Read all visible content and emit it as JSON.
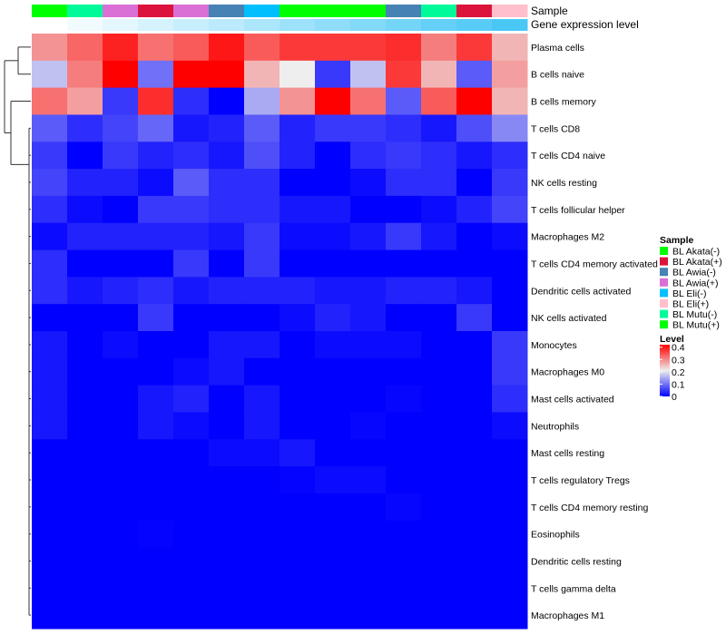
{
  "chart_data": {
    "type": "heatmap",
    "title": "",
    "annotation_labels": [
      "Sample",
      "Gene expression level"
    ],
    "columns": [
      {
        "sample": "BL Mutu(+)",
        "expression_rank": 0.0
      },
      {
        "sample": "BL Mutu(-)",
        "expression_rank": 0.08
      },
      {
        "sample": "BL Awia(+)",
        "expression_rank": 0.15
      },
      {
        "sample": "BL Akata(+)",
        "expression_rank": 0.23
      },
      {
        "sample": "BL Awia(+)",
        "expression_rank": 0.31
      },
      {
        "sample": "BL Awia(-)",
        "expression_rank": 0.38
      },
      {
        "sample": "BL Eli(-)",
        "expression_rank": 0.46
      },
      {
        "sample": "BL Akata(-)",
        "expression_rank": 0.54
      },
      {
        "sample": "BL Mutu(+)",
        "expression_rank": 0.62
      },
      {
        "sample": "BL Akata(-)",
        "expression_rank": 0.69
      },
      {
        "sample": "BL Awia(-)",
        "expression_rank": 0.77
      },
      {
        "sample": "BL Mutu(-)",
        "expression_rank": 0.85
      },
      {
        "sample": "BL Akata(+)",
        "expression_rank": 0.92
      },
      {
        "sample": "BL Eli(+)",
        "expression_rank": 1.0
      }
    ],
    "rows": [
      "Plasma cells",
      "B cells naive",
      "B cells memory",
      "T cells CD8",
      "T cells CD4 naive",
      "NK cells resting",
      "T cells follicular helper",
      "Macrophages M2",
      "T cells CD4 memory activated",
      "Dendritic cells activated",
      "NK cells activated",
      "Monocytes",
      "Macrophages M0",
      "Mast cells activated",
      "Neutrophils",
      "Mast cells resting",
      "T cells regulatory  Tregs",
      "T cells CD4 memory resting",
      "Eosinophils",
      "Dendritic cells resting",
      "T cells gamma delta",
      "Macrophages M1"
    ],
    "values": [
      [
        0.29,
        0.33,
        0.39,
        0.32,
        0.34,
        0.4,
        0.34,
        0.37,
        0.37,
        0.37,
        0.38,
        0.31,
        0.37,
        0.26
      ],
      [
        0.17,
        0.31,
        0.42,
        0.1,
        0.42,
        0.42,
        0.26,
        0.21,
        0.05,
        0.17,
        0.37,
        0.26,
        0.08,
        0.28
      ],
      [
        0.32,
        0.28,
        0.05,
        0.38,
        0.04,
        0.0,
        0.15,
        0.29,
        0.42,
        0.32,
        0.08,
        0.34,
        0.42,
        0.26
      ],
      [
        0.08,
        0.04,
        0.06,
        0.09,
        0.02,
        0.03,
        0.08,
        0.03,
        0.05,
        0.05,
        0.04,
        0.02,
        0.07,
        0.12
      ],
      [
        0.05,
        0.0,
        0.05,
        0.03,
        0.04,
        0.02,
        0.07,
        0.03,
        0.0,
        0.04,
        0.05,
        0.04,
        0.02,
        0.04
      ],
      [
        0.06,
        0.03,
        0.03,
        0.01,
        0.08,
        0.04,
        0.04,
        0.0,
        0.0,
        0.01,
        0.04,
        0.04,
        0.0,
        0.05
      ],
      [
        0.04,
        0.01,
        0.0,
        0.05,
        0.05,
        0.04,
        0.04,
        0.02,
        0.02,
        0.0,
        0.0,
        0.01,
        0.03,
        0.06
      ],
      [
        0.01,
        0.03,
        0.03,
        0.03,
        0.03,
        0.02,
        0.05,
        0.01,
        0.01,
        0.02,
        0.05,
        0.02,
        0.0,
        0.01
      ],
      [
        0.04,
        0.0,
        0.0,
        0.0,
        0.05,
        0.0,
        0.05,
        0.0,
        0.0,
        0.0,
        0.0,
        0.0,
        0.0,
        0.0
      ],
      [
        0.04,
        0.02,
        0.03,
        0.04,
        0.02,
        0.03,
        0.03,
        0.03,
        0.02,
        0.02,
        0.03,
        0.03,
        0.02,
        0.0
      ],
      [
        0.0,
        0.0,
        0.0,
        0.05,
        0.0,
        0.0,
        0.0,
        0.01,
        0.03,
        0.02,
        0.0,
        0.0,
        0.05,
        0.0
      ],
      [
        0.02,
        0.0,
        0.01,
        0.0,
        0.0,
        0.02,
        0.02,
        0.0,
        0.01,
        0.01,
        0.01,
        0.0,
        0.0,
        0.05
      ],
      [
        0.02,
        0.0,
        0.0,
        0.0,
        0.01,
        0.02,
        0.0,
        0.0,
        0.0,
        0.0,
        0.0,
        0.0,
        0.0,
        0.05
      ],
      [
        0.02,
        0.0,
        0.0,
        0.02,
        0.03,
        0.0,
        0.02,
        0.0,
        0.0,
        0.0,
        0.005,
        0.0,
        0.0,
        0.04
      ],
      [
        0.02,
        0.0,
        0.0,
        0.02,
        0.01,
        0.0,
        0.02,
        0.0,
        0.0,
        0.005,
        0.0,
        0.0,
        0.0,
        0.01
      ],
      [
        0.0,
        0.0,
        0.0,
        0.0,
        0.0,
        0.01,
        0.01,
        0.02,
        0.0,
        0.0,
        0.0,
        0.0,
        0.0,
        0.0
      ],
      [
        0.0,
        0.0,
        0.0,
        0.0,
        0.0,
        0.0,
        0.0,
        0.003,
        0.01,
        0.01,
        0.0,
        0.0,
        0.0,
        0.0
      ],
      [
        0.0,
        0.0,
        0.0,
        0.0,
        0.0,
        0.0,
        0.0,
        0.0,
        0.0,
        0.0,
        0.005,
        0.0,
        0.0,
        0.0
      ],
      [
        0.0,
        0.0,
        0.0,
        0.003,
        0.0,
        0.0,
        0.0,
        0.0,
        0.0,
        0.0,
        0.0,
        0.0,
        0.0,
        0.0
      ],
      [
        0,
        0,
        0,
        0,
        0,
        0,
        0,
        0,
        0,
        0,
        0,
        0,
        0,
        0
      ],
      [
        0,
        0,
        0,
        0,
        0,
        0,
        0,
        0,
        0,
        0,
        0,
        0,
        0,
        0
      ],
      [
        0,
        0,
        0,
        0,
        0,
        0,
        0,
        0,
        0,
        0,
        0,
        0,
        0,
        0
      ]
    ],
    "scale": {
      "min": 0,
      "max": 0.42,
      "low": "#0000FF",
      "mid": "#EEEEEE",
      "high": "#FF0000"
    },
    "expression_colors": {
      "low": "#FFFFFF",
      "high": "#4AC8F5"
    },
    "legend": {
      "placement": "right",
      "sample_title": "Sample",
      "samples": [
        {
          "label": "BL Akata(-)",
          "color": "#00FF00"
        },
        {
          "label": "BL Akata(+)",
          "color": "#DC143C"
        },
        {
          "label": "BL Awia(-)",
          "color": "#4682B4"
        },
        {
          "label": "BL Awia(+)",
          "color": "#DA70D6"
        },
        {
          "label": "BL Eli(-)",
          "color": "#00BFFF"
        },
        {
          "label": "BL Eli(+)",
          "color": "#FFC0CB"
        },
        {
          "label": "BL Mutu(-)",
          "color": "#00FA9A"
        },
        {
          "label": "BL Mutu(+)",
          "color": "#00FF00"
        }
      ],
      "level_title": "Level",
      "level_ticks": [
        {
          "label": "0.4",
          "value": 0.4
        },
        {
          "label": "0.3",
          "value": 0.3
        },
        {
          "label": "0.2",
          "value": 0.2
        },
        {
          "label": "0.1",
          "value": 0.1
        },
        {
          "label": "0",
          "value": 0
        }
      ]
    }
  }
}
